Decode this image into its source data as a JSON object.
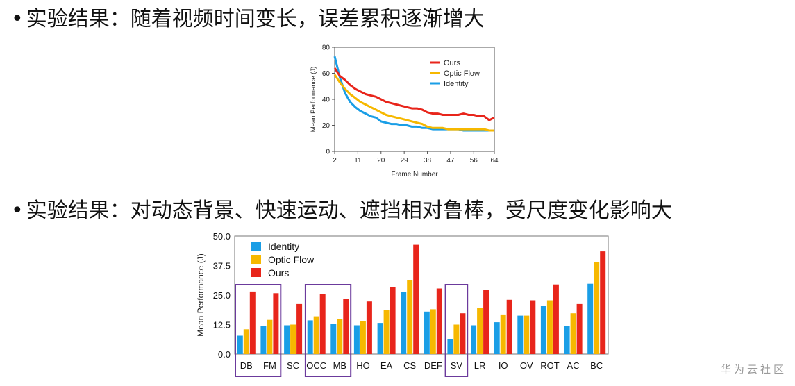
{
  "bullets": [
    {
      "text": "实验结果：随着视频时间变长，误差累积逐渐增大"
    },
    {
      "text": "实验结果：对动态背景、快速运动、遮挡相对鲁棒，受尺度变化影响大"
    }
  ],
  "watermark": "华为云社区",
  "bullet_symbol": "•",
  "colors": {
    "ours": "#e8251b",
    "optic_flow": "#f6b800",
    "identity": "#1a9ee6",
    "highlight_box": "#6b3a9c"
  },
  "chart_data": [
    {
      "type": "line",
      "xlabel": "Frame Number",
      "ylabel": "Mean Performance (J)",
      "xlim": [
        2,
        64
      ],
      "ylim": [
        0,
        80
      ],
      "xticks": [
        2,
        11,
        20,
        29,
        38,
        47,
        56,
        64
      ],
      "yticks": [
        0,
        20,
        40,
        60,
        80
      ],
      "legend_position": "top-right",
      "x": [
        2,
        4,
        6,
        8,
        10,
        12,
        14,
        16,
        18,
        20,
        22,
        24,
        26,
        28,
        30,
        32,
        34,
        36,
        38,
        40,
        42,
        44,
        46,
        48,
        50,
        52,
        54,
        56,
        58,
        60,
        62,
        64
      ],
      "series": [
        {
          "name": "Ours",
          "color_key": "ours",
          "values": [
            64,
            58,
            55,
            51,
            48,
            46,
            44,
            43,
            42,
            40,
            38,
            37,
            36,
            35,
            34,
            33,
            33,
            32,
            30,
            29,
            29,
            28,
            28,
            28,
            28,
            29,
            28,
            28,
            27,
            27,
            24,
            26
          ]
        },
        {
          "name": "Optic Flow",
          "color_key": "optic_flow",
          "values": [
            59,
            53,
            48,
            44,
            41,
            38,
            36,
            34,
            32,
            30,
            28,
            27,
            26,
            25,
            24,
            23,
            22,
            21,
            19,
            18,
            18,
            18,
            17,
            17,
            17,
            17,
            17,
            17,
            17,
            17,
            16,
            16
          ]
        },
        {
          "name": "Identity",
          "color_key": "identity",
          "values": [
            73,
            57,
            45,
            38,
            34,
            31,
            29,
            27,
            26,
            23,
            22,
            21,
            21,
            20,
            20,
            19,
            19,
            18,
            18,
            17,
            17,
            17,
            17,
            17,
            17,
            16,
            16,
            16,
            16,
            16,
            16,
            16
          ]
        }
      ]
    },
    {
      "type": "bar",
      "ylabel": "Mean Performance (J)",
      "ylim": [
        0,
        50
      ],
      "yticks": [
        "0.0",
        "12.5",
        "25.0",
        "37.5",
        "50.0"
      ],
      "legend_position": "top-left",
      "categories": [
        "DB",
        "FM",
        "SC",
        "OCC",
        "MB",
        "HO",
        "EA",
        "CS",
        "DEF",
        "SV",
        "LR",
        "IO",
        "OV",
        "ROT",
        "AC",
        "BC"
      ],
      "highlighted_groups": [
        [
          "DB",
          "FM"
        ],
        [
          "OCC",
          "MB"
        ],
        [
          "SV"
        ]
      ],
      "series": [
        {
          "name": "Identity",
          "color_key": "identity",
          "values": [
            7.8,
            11.8,
            12.2,
            14.3,
            12.8,
            12.2,
            13.2,
            26.3,
            18.0,
            6.3,
            12.2,
            13.5,
            16.3,
            20.3,
            11.8,
            29.8
          ]
        },
        {
          "name": "Optic Flow",
          "color_key": "optic_flow",
          "values": [
            10.5,
            14.5,
            12.5,
            16.0,
            14.8,
            14.0,
            18.8,
            31.3,
            19.0,
            12.5,
            19.5,
            16.5,
            16.3,
            22.8,
            17.3,
            39.0
          ]
        },
        {
          "name": "Ours",
          "color_key": "ours",
          "values": [
            26.5,
            25.8,
            21.2,
            25.3,
            23.3,
            22.3,
            28.5,
            46.3,
            27.8,
            17.3,
            27.3,
            23.0,
            22.8,
            29.5,
            21.2,
            43.5
          ]
        }
      ]
    }
  ]
}
